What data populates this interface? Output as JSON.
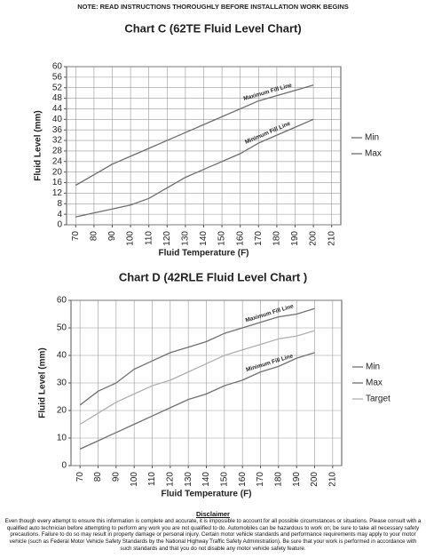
{
  "note": "NOTE: READ INSTRUCTIONS THOROUGHLY BEFORE INSTALLATION WORK BEGINS",
  "chart_data": [
    {
      "type": "line",
      "title": "Chart C (62TE Fluid Level Chart)",
      "x_label": "Fluid Temperature (F)",
      "y_label": "Fluid Level (mm)",
      "x": [
        70,
        80,
        90,
        100,
        110,
        120,
        130,
        140,
        150,
        160,
        170,
        180,
        190,
        200
      ],
      "series": [
        {
          "name": "Min",
          "color": "#6e6e6e",
          "values": [
            3,
            4.5,
            6,
            7.5,
            10,
            14,
            18,
            21,
            24,
            27,
            31,
            34,
            37,
            40
          ]
        },
        {
          "name": "Max",
          "color": "#6e6e6e",
          "values": [
            15,
            19,
            23,
            26,
            29,
            32,
            35,
            38,
            41,
            44,
            47,
            49,
            51,
            53
          ]
        }
      ],
      "annotations": [
        {
          "text": "Maximum Fill Line",
          "series": 1
        },
        {
          "text": "Minimum Fill Line",
          "series": 0
        }
      ],
      "xlim": [
        65,
        215
      ],
      "xticks": [
        70,
        80,
        90,
        100,
        110,
        120,
        130,
        140,
        150,
        160,
        170,
        180,
        190,
        200,
        210
      ],
      "ylim": [
        0,
        60
      ],
      "yticks": [
        0,
        4,
        8,
        12,
        16,
        20,
        24,
        28,
        32,
        36,
        40,
        44,
        48,
        52,
        56,
        60
      ],
      "grid": true,
      "legend": "right"
    },
    {
      "type": "line",
      "title": "Chart D (42RLE Fluid Level Chart )",
      "x_label": "Fluid Temperature (F)",
      "y_label": "Fluid Level (mm)",
      "x": [
        70,
        80,
        90,
        100,
        110,
        120,
        130,
        140,
        150,
        160,
        170,
        180,
        190,
        200
      ],
      "series": [
        {
          "name": "Min",
          "color": "#707070",
          "values": [
            6,
            9,
            12,
            15,
            18,
            21,
            24,
            26,
            29,
            31,
            34,
            36,
            39,
            41
          ]
        },
        {
          "name": "Max",
          "color": "#707070",
          "values": [
            22,
            27,
            30,
            35,
            38,
            41,
            43,
            45,
            48,
            50,
            52,
            54,
            55,
            57
          ]
        },
        {
          "name": "Target",
          "color": "#b0b0b0",
          "values": [
            15,
            19,
            23,
            26,
            29,
            31,
            34,
            37,
            40,
            42,
            44,
            46,
            47,
            49
          ]
        }
      ],
      "annotations": [
        {
          "text": "Maximum Fill Line",
          "series": 1
        },
        {
          "text": "Minimum Fill Line",
          "series": 0
        }
      ],
      "xlim": [
        65,
        215
      ],
      "xticks": [
        70,
        80,
        90,
        100,
        110,
        120,
        130,
        140,
        150,
        160,
        170,
        180,
        190,
        200,
        210
      ],
      "ylim": [
        0,
        60
      ],
      "yticks": [
        0,
        10,
        20,
        30,
        40,
        50,
        60
      ],
      "grid": true,
      "legend": "right"
    }
  ],
  "disclaimer": {
    "title": "Disclaimer",
    "text": "Even though every attempt to ensure this information is complete and accurate, it is impossible to account for all possible circumstances or situations. Please consult with a qualified auto technician before attempting to perform any work you are not qualified to do. Automobiles can be hazardous to work on; be sure to take all necessary safety precautions. Failure to do so may result in property damage or personal injury. Certain motor vehicle standards and performance requirements may apply to your motor vehicle (such as Federal Motor Vehicle Safety Standards by the National Highway Traffic Safety Administration). Be sure that your work is performed in accordance with such standards and that you do not disable any motor vehicle safety feature."
  }
}
